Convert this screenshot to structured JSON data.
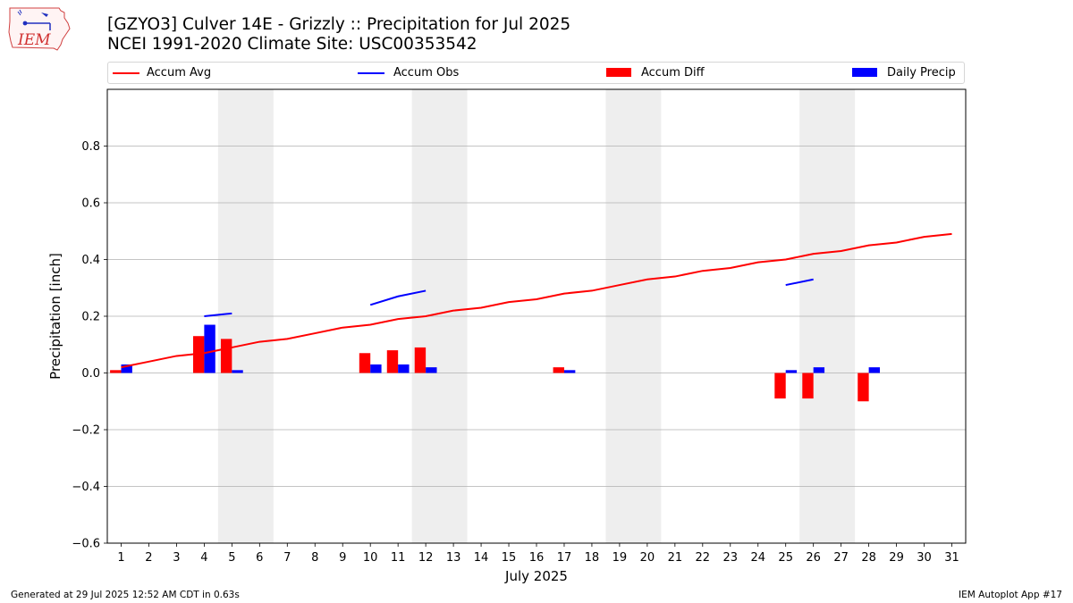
{
  "header": {
    "title_line1": "[GZYO3] Culver 14E - Grizzly :: Precipitation for Jul 2025",
    "title_line2": "NCEI 1991-2020 Climate Site: USC00353542",
    "logo_text": "IEM"
  },
  "footer": {
    "left": "Generated at 29 Jul 2025 12:52 AM CDT in 0.63s",
    "right": "IEM Autoplot App #17"
  },
  "colors": {
    "accum_avg": "#ff0000",
    "accum_obs": "#0000ff",
    "accum_diff": "#ff0000",
    "daily_precip": "#0000ff",
    "weekend_shade": "#eeeeee",
    "grid": "#b0b0b0"
  },
  "chart_data": {
    "type": "bar",
    "title": "[GZYO3] Culver 14E - Grizzly :: Precipitation for Jul 2025",
    "subtitle": "NCEI 1991-2020 Climate Site: USC00353542",
    "xlabel": "July 2025",
    "ylabel": "Precipitation [inch]",
    "ylim": [
      -0.6,
      1.0
    ],
    "xlim": [
      0.5,
      31.5
    ],
    "yticks": [
      -0.6,
      -0.4,
      -0.2,
      0.0,
      0.2,
      0.4,
      0.6,
      0.8
    ],
    "ytick_labels": [
      "−0.6",
      "−0.4",
      "−0.2",
      "0.0",
      "0.2",
      "0.4",
      "0.6",
      "0.8"
    ],
    "x": [
      1,
      2,
      3,
      4,
      5,
      6,
      7,
      8,
      9,
      10,
      11,
      12,
      13,
      14,
      15,
      16,
      17,
      18,
      19,
      20,
      21,
      22,
      23,
      24,
      25,
      26,
      27,
      28,
      29,
      30,
      31
    ],
    "xtick_labels": [
      "1",
      "2",
      "3",
      "4",
      "5",
      "6",
      "7",
      "8",
      "9",
      "10",
      "11",
      "12",
      "13",
      "14",
      "15",
      "16",
      "17",
      "18",
      "19",
      "20",
      "21",
      "22",
      "23",
      "24",
      "25",
      "26",
      "27",
      "28",
      "29",
      "30",
      "31"
    ],
    "grid": true,
    "legend_position": "top",
    "weekend_spans": [
      [
        5,
        6
      ],
      [
        12,
        13
      ],
      [
        19,
        20
      ],
      [
        26,
        27
      ]
    ],
    "series": [
      {
        "name": "Accum Avg",
        "type": "line",
        "color": "#ff0000",
        "x": [
          1,
          2,
          3,
          4,
          5,
          6,
          7,
          8,
          9,
          10,
          11,
          12,
          13,
          14,
          15,
          16,
          17,
          18,
          19,
          20,
          21,
          22,
          23,
          24,
          25,
          26,
          27,
          28,
          29,
          30,
          31
        ],
        "values": [
          0.02,
          0.04,
          0.06,
          0.07,
          0.09,
          0.11,
          0.12,
          0.14,
          0.16,
          0.17,
          0.19,
          0.2,
          0.22,
          0.23,
          0.25,
          0.26,
          0.28,
          0.29,
          0.31,
          0.33,
          0.34,
          0.36,
          0.37,
          0.39,
          0.4,
          0.42,
          0.43,
          0.45,
          0.46,
          0.48,
          0.49
        ]
      },
      {
        "name": "Accum Obs",
        "type": "line",
        "color": "#0000ff",
        "segments": [
          {
            "x": [
              4,
              5
            ],
            "values": [
              0.2,
              0.21
            ]
          },
          {
            "x": [
              10,
              11,
              12
            ],
            "values": [
              0.24,
              0.27,
              0.29
            ]
          },
          {
            "x": [
              25,
              26
            ],
            "values": [
              0.31,
              0.33
            ]
          }
        ]
      },
      {
        "name": "Accum Diff",
        "type": "bar",
        "color": "#ff0000",
        "x": [
          1,
          4,
          5,
          10,
          11,
          12,
          17,
          25,
          26,
          28
        ],
        "values": [
          0.01,
          0.13,
          0.12,
          0.07,
          0.08,
          0.09,
          0.02,
          -0.09,
          -0.09,
          -0.1
        ]
      },
      {
        "name": "Daily Precip",
        "type": "bar",
        "color": "#0000ff",
        "x": [
          1,
          4,
          5,
          10,
          11,
          12,
          17,
          25,
          26,
          28
        ],
        "values": [
          0.03,
          0.17,
          0.01,
          0.03,
          0.03,
          0.02,
          0.01,
          0.01,
          0.02,
          0.02
        ]
      }
    ]
  }
}
